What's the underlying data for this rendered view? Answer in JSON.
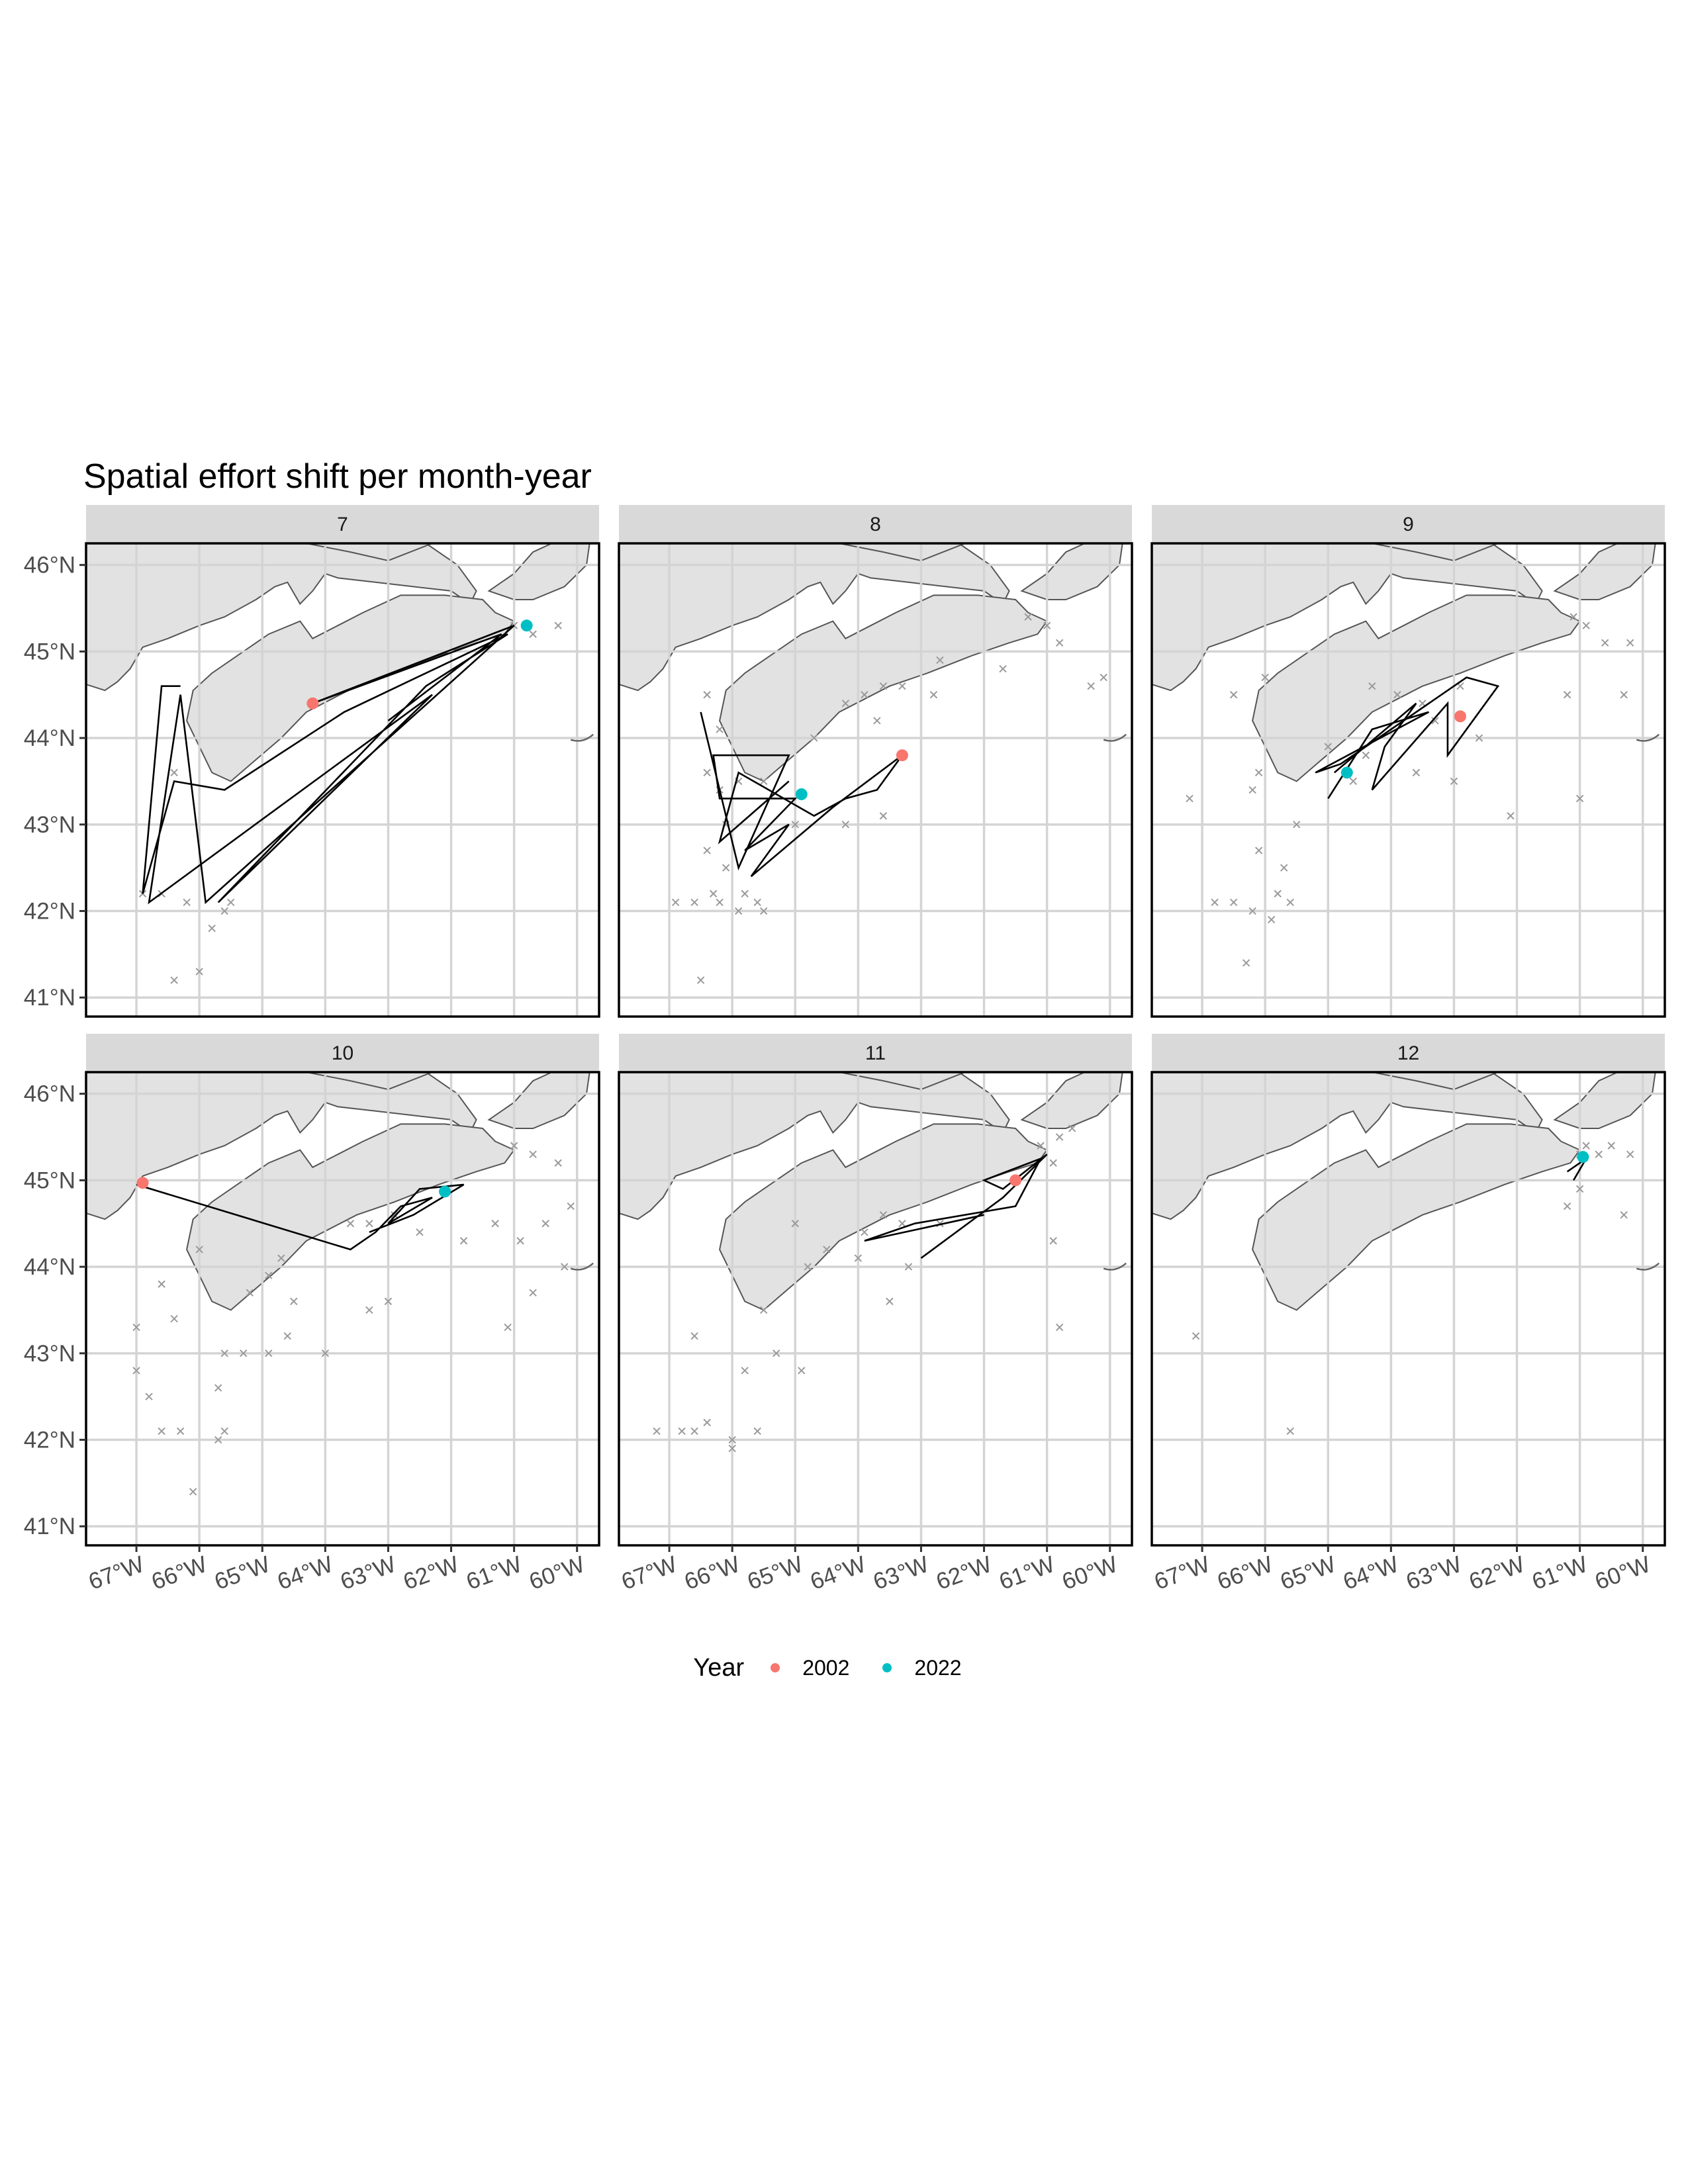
{
  "colors": {
    "year_2002": "#F8766D",
    "year_2022": "#00BFC4",
    "land": "#e2e2e2",
    "coast": "#555555",
    "points": "#9a9a9a",
    "track": "#000000",
    "grid": "#d4d4d4",
    "strip": "#d9d9d9"
  },
  "chart_data": {
    "type": "map-facets",
    "title": "Spatial effort shift per month-year",
    "x_ticks": [
      "67°W",
      "66°W",
      "65°W",
      "64°W",
      "63°W",
      "62°W",
      "61°W",
      "60°W"
    ],
    "x_tick_values": [
      -67,
      -66,
      -65,
      -64,
      -63,
      -62,
      -61,
      -60
    ],
    "y_ticks": [
      "41°N",
      "42°N",
      "43°N",
      "44°N",
      "45°N",
      "46°N"
    ],
    "y_tick_values": [
      41,
      42,
      43,
      44,
      45,
      46
    ],
    "xlim": [
      -67.8,
      -59.65
    ],
    "ylim": [
      40.78,
      46.25
    ],
    "legend": {
      "title": "Year",
      "position": "bottom",
      "items": [
        {
          "label": "2002",
          "color": "#F8766D"
        },
        {
          "label": "2022",
          "color": "#00BFC4"
        }
      ]
    },
    "facets": [
      {
        "label": "7",
        "centroids": [
          {
            "year": "2002",
            "lon": -64.2,
            "lat": 44.4
          },
          {
            "year": "2022",
            "lon": -60.8,
            "lat": 45.3
          }
        ],
        "tracks": [
          [
            -66.3,
            44.6
          ],
          [
            -66.6,
            44.6
          ],
          [
            -66.9,
            42.2
          ],
          [
            -66.4,
            43.5
          ],
          [
            -65.6,
            43.4
          ],
          [
            -63.7,
            44.3
          ],
          [
            -61.1,
            45.2
          ],
          [
            -62.4,
            44.6
          ],
          [
            -65.7,
            42.1
          ],
          [
            -62.3,
            44.5
          ],
          [
            -66.8,
            42.1
          ],
          [
            -66.3,
            44.5
          ],
          [
            -65.9,
            42.1
          ],
          [
            -61.0,
            45.3
          ],
          [
            -64.2,
            44.4
          ],
          [
            -61.2,
            45.2
          ],
          [
            -63.0,
            44.2
          ]
        ],
        "points": [
          [
            -66.9,
            42.2
          ],
          [
            -66.6,
            42.2
          ],
          [
            -66.2,
            42.1
          ],
          [
            -65.5,
            42.1
          ],
          [
            -65.6,
            42.0
          ],
          [
            -65.8,
            41.8
          ],
          [
            -66.0,
            41.3
          ],
          [
            -66.4,
            41.2
          ],
          [
            -66.4,
            43.6
          ],
          [
            -61.0,
            45.3
          ],
          [
            -60.7,
            45.2
          ],
          [
            -60.3,
            45.3
          ]
        ]
      },
      {
        "label": "8",
        "centroids": [
          {
            "year": "2002",
            "lon": -63.3,
            "lat": 43.8
          },
          {
            "year": "2022",
            "lon": -64.9,
            "lat": 43.35
          }
        ],
        "tracks": [
          [
            -66.5,
            44.3
          ],
          [
            -65.9,
            42.5
          ],
          [
            -65.1,
            43.8
          ],
          [
            -66.3,
            43.8
          ],
          [
            -66.2,
            43.3
          ],
          [
            -65.0,
            43.3
          ],
          [
            -65.8,
            42.7
          ],
          [
            -65.1,
            43.0
          ],
          [
            -65.7,
            42.4
          ],
          [
            -64.4,
            43.2
          ],
          [
            -63.3,
            43.8
          ],
          [
            -63.7,
            43.4
          ],
          [
            -64.2,
            43.3
          ],
          [
            -64.7,
            43.1
          ],
          [
            -65.9,
            43.6
          ],
          [
            -66.2,
            42.8
          ],
          [
            -65.1,
            43.5
          ]
        ],
        "points": [
          [
            -66.3,
            42.2
          ],
          [
            -66.6,
            42.1
          ],
          [
            -66.9,
            42.1
          ],
          [
            -66.2,
            42.1
          ],
          [
            -65.9,
            42.0
          ],
          [
            -65.6,
            42.1
          ],
          [
            -65.8,
            42.2
          ],
          [
            -65.5,
            42.0
          ],
          [
            -66.1,
            42.5
          ],
          [
            -66.4,
            42.7
          ],
          [
            -66.1,
            43.0
          ],
          [
            -66.2,
            43.4
          ],
          [
            -66.4,
            43.6
          ],
          [
            -65.9,
            43.5
          ],
          [
            -66.4,
            44.5
          ],
          [
            -66.2,
            44.1
          ],
          [
            -63.9,
            44.5
          ],
          [
            -64.2,
            44.4
          ],
          [
            -63.6,
            44.6
          ],
          [
            -63.3,
            44.6
          ],
          [
            -62.7,
            44.9
          ],
          [
            -61.3,
            45.4
          ],
          [
            -61.0,
            45.3
          ],
          [
            -60.8,
            45.1
          ],
          [
            -60.3,
            44.6
          ],
          [
            -60.1,
            44.7
          ],
          [
            -62.8,
            44.5
          ],
          [
            -63.7,
            44.2
          ],
          [
            -64.7,
            44.0
          ],
          [
            -65.5,
            43.5
          ],
          [
            -65.0,
            43.0
          ],
          [
            -64.2,
            43.0
          ],
          [
            -66.5,
            41.2
          ],
          [
            -63.6,
            43.1
          ],
          [
            -61.7,
            44.8
          ]
        ]
      },
      {
        "label": "9",
        "centroids": [
          {
            "year": "2002",
            "lon": -62.9,
            "lat": 44.25
          },
          {
            "year": "2022",
            "lon": -64.7,
            "lat": 43.6
          }
        ],
        "tracks": [
          [
            -64.9,
            43.6
          ],
          [
            -63.6,
            44.4
          ],
          [
            -64.1,
            43.9
          ],
          [
            -64.3,
            43.4
          ],
          [
            -63.1,
            44.4
          ],
          [
            -63.1,
            43.8
          ],
          [
            -62.3,
            44.6
          ],
          [
            -62.8,
            44.7
          ],
          [
            -64.4,
            43.9
          ],
          [
            -64.8,
            43.7
          ],
          [
            -65.2,
            43.6
          ],
          [
            -63.4,
            44.3
          ],
          [
            -64.3,
            44.1
          ],
          [
            -65.0,
            43.3
          ]
        ],
        "points": [
          [
            -66.5,
            42.1
          ],
          [
            -66.8,
            42.1
          ],
          [
            -66.2,
            42.0
          ],
          [
            -65.9,
            41.9
          ],
          [
            -65.6,
            42.1
          ],
          [
            -65.8,
            42.2
          ],
          [
            -66.1,
            42.7
          ],
          [
            -65.7,
            42.5
          ],
          [
            -65.5,
            43.0
          ],
          [
            -66.2,
            43.4
          ],
          [
            -66.1,
            43.6
          ],
          [
            -66.5,
            44.5
          ],
          [
            -66.0,
            44.7
          ],
          [
            -64.3,
            44.6
          ],
          [
            -63.9,
            44.5
          ],
          [
            -63.5,
            44.4
          ],
          [
            -63.3,
            44.2
          ],
          [
            -62.9,
            44.6
          ],
          [
            -61.1,
            45.4
          ],
          [
            -60.9,
            45.3
          ],
          [
            -60.6,
            45.1
          ],
          [
            -60.2,
            45.1
          ],
          [
            -62.6,
            44.0
          ],
          [
            -63.6,
            43.6
          ],
          [
            -64.4,
            43.8
          ],
          [
            -65.0,
            43.9
          ],
          [
            -64.6,
            43.5
          ],
          [
            -61.0,
            43.3
          ],
          [
            -62.1,
            43.1
          ],
          [
            -63.0,
            43.5
          ],
          [
            -61.2,
            44.5
          ],
          [
            -60.3,
            44.5
          ],
          [
            -66.3,
            41.4
          ],
          [
            -67.2,
            43.3
          ]
        ]
      },
      {
        "label": "10",
        "centroids": [
          {
            "year": "2002",
            "lon": -66.9,
            "lat": 44.97
          },
          {
            "year": "2022",
            "lon": -62.1,
            "lat": 44.87
          }
        ],
        "tracks": [
          [
            -67.0,
            44.95
          ],
          [
            -63.6,
            44.2
          ],
          [
            -63.2,
            44.4
          ],
          [
            -62.8,
            44.7
          ],
          [
            -62.3,
            44.8
          ],
          [
            -63.0,
            44.5
          ],
          [
            -62.5,
            44.9
          ],
          [
            -61.8,
            44.95
          ],
          [
            -62.6,
            44.6
          ],
          [
            -63.3,
            44.4
          ]
        ],
        "points": [
          [
            -67.0,
            42.8
          ],
          [
            -66.8,
            42.5
          ],
          [
            -66.6,
            42.1
          ],
          [
            -66.3,
            42.1
          ],
          [
            -65.6,
            42.1
          ],
          [
            -65.7,
            42.0
          ],
          [
            -66.1,
            41.4
          ],
          [
            -65.7,
            42.6
          ],
          [
            -65.6,
            43.0
          ],
          [
            -65.3,
            43.0
          ],
          [
            -64.9,
            43.0
          ],
          [
            -64.6,
            43.2
          ],
          [
            -64.0,
            43.0
          ],
          [
            -64.5,
            43.6
          ],
          [
            -64.9,
            43.9
          ],
          [
            -65.2,
            43.7
          ],
          [
            -64.7,
            44.1
          ],
          [
            -63.6,
            44.5
          ],
          [
            -63.3,
            44.5
          ],
          [
            -62.9,
            44.6
          ],
          [
            -62.5,
            44.4
          ],
          [
            -61.8,
            44.3
          ],
          [
            -61.3,
            44.5
          ],
          [
            -60.9,
            44.3
          ],
          [
            -60.5,
            44.5
          ],
          [
            -60.7,
            45.3
          ],
          [
            -61.0,
            45.4
          ],
          [
            -60.3,
            45.2
          ],
          [
            -60.1,
            44.7
          ],
          [
            -60.2,
            44.0
          ],
          [
            -60.7,
            43.7
          ],
          [
            -61.1,
            43.3
          ],
          [
            -63.3,
            43.5
          ],
          [
            -63.0,
            43.6
          ],
          [
            -66.4,
            43.4
          ],
          [
            -66.6,
            43.8
          ],
          [
            -66.0,
            44.2
          ],
          [
            -67.0,
            43.3
          ]
        ]
      },
      {
        "label": "11",
        "centroids": [
          {
            "year": "2002",
            "lon": -61.5,
            "lat": 45.0
          }
        ],
        "tracks": [
          [
            -63.0,
            44.1
          ],
          [
            -61.7,
            44.8
          ],
          [
            -61.0,
            45.3
          ],
          [
            -61.7,
            44.9
          ],
          [
            -62.0,
            45.0
          ],
          [
            -61.1,
            45.25
          ],
          [
            -61.5,
            44.7
          ],
          [
            -63.1,
            44.5
          ],
          [
            -63.9,
            44.3
          ],
          [
            -62.0,
            44.6
          ]
        ],
        "points": [
          [
            -66.8,
            42.1
          ],
          [
            -66.6,
            42.1
          ],
          [
            -66.4,
            42.2
          ],
          [
            -66.0,
            42.0
          ],
          [
            -66.0,
            41.9
          ],
          [
            -65.6,
            42.1
          ],
          [
            -67.2,
            42.1
          ],
          [
            -65.8,
            42.8
          ],
          [
            -65.3,
            43.0
          ],
          [
            -64.9,
            42.8
          ],
          [
            -65.5,
            43.5
          ],
          [
            -66.6,
            43.2
          ],
          [
            -64.8,
            44.0
          ],
          [
            -64.5,
            44.2
          ],
          [
            -63.9,
            44.4
          ],
          [
            -63.6,
            44.6
          ],
          [
            -63.3,
            44.5
          ],
          [
            -63.2,
            44.0
          ],
          [
            -63.5,
            43.6
          ],
          [
            -62.7,
            44.5
          ],
          [
            -61.1,
            45.4
          ],
          [
            -60.9,
            45.2
          ],
          [
            -60.8,
            45.5
          ],
          [
            -60.6,
            45.6
          ],
          [
            -60.9,
            44.3
          ],
          [
            -60.8,
            43.3
          ],
          [
            -65.0,
            44.5
          ],
          [
            -64.0,
            44.1
          ]
        ]
      },
      {
        "label": "12",
        "centroids": [
          {
            "year": "2022",
            "lon": -60.95,
            "lat": 45.27
          }
        ],
        "tracks": [
          [
            -61.1,
            45.0
          ],
          [
            -60.9,
            45.25
          ],
          [
            -61.2,
            45.1
          ]
        ],
        "points": [
          [
            -61.0,
            45.3
          ],
          [
            -60.9,
            45.4
          ],
          [
            -60.7,
            45.3
          ],
          [
            -60.5,
            45.4
          ],
          [
            -60.2,
            45.3
          ],
          [
            -60.3,
            44.6
          ],
          [
            -61.2,
            44.7
          ],
          [
            -61.0,
            44.9
          ],
          [
            -65.6,
            42.1
          ],
          [
            -67.1,
            43.2
          ]
        ]
      }
    ]
  }
}
